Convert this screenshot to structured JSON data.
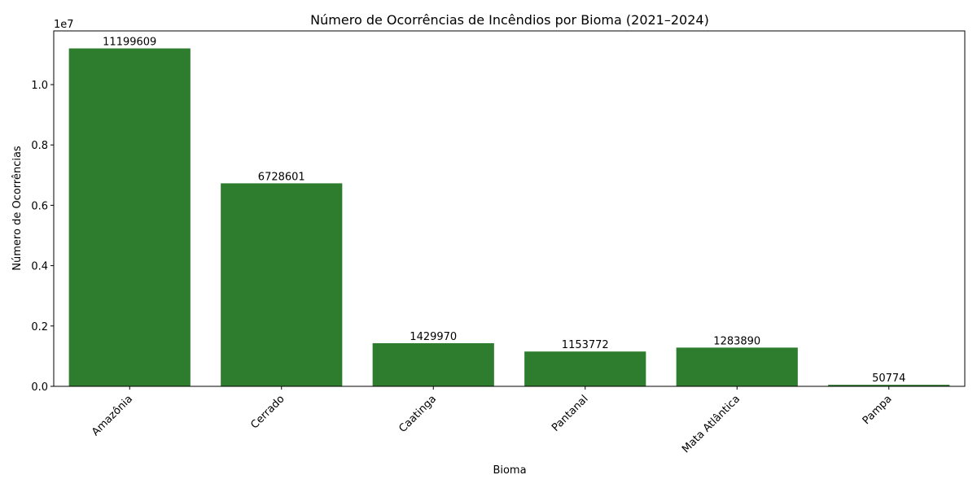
{
  "chart_data": {
    "type": "bar",
    "title": "Número de Ocorrências de Incêndios por Bioma (2021–2024)",
    "x_label": "Bioma",
    "y_label": "Número de Ocorrências",
    "y_offset_label": "1e7",
    "categories": [
      "Amazônia",
      "Cerrado",
      "Caatinga",
      "Pantanal",
      "Mata Atlântica",
      "Pampa"
    ],
    "values": [
      11199609,
      6728601,
      1429970,
      1153772,
      1283890,
      50774
    ],
    "color": "#2e7d2e",
    "ylim": [
      0,
      11780000
    ],
    "yticks": [
      {
        "value": 0,
        "label": "0.0"
      },
      {
        "value": 2000000,
        "label": "0.2"
      },
      {
        "value": 4000000,
        "label": "0.4"
      },
      {
        "value": 6000000,
        "label": "0.6"
      },
      {
        "value": 8000000,
        "label": "0.8"
      },
      {
        "value": 10000000,
        "label": "1.0"
      }
    ],
    "grid": false
  }
}
